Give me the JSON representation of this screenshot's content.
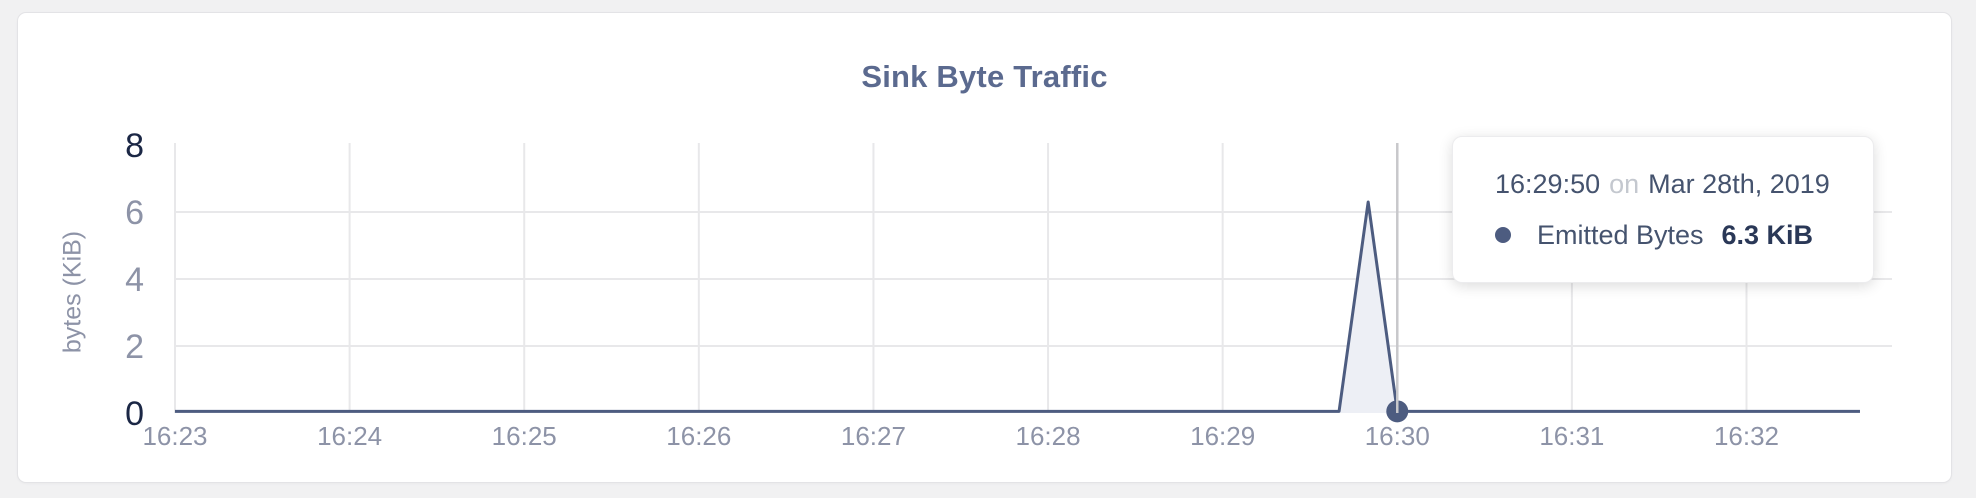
{
  "page": {
    "background": "#f1f1f2"
  },
  "card": {
    "background": "#ffffff",
    "border_color": "#e3e3e6"
  },
  "chart_data": {
    "type": "area",
    "title": "Sink Byte Traffic",
    "xlabel": "",
    "ylabel": "bytes (KiB)",
    "ylim": [
      0,
      8
    ],
    "yticks": [
      0,
      2,
      4,
      6,
      8
    ],
    "ytick_gridlines": [
      2,
      4,
      6
    ],
    "xlim": [
      "16:23:00",
      "16:32:50"
    ],
    "xticks": [
      {
        "time": "16:23:00",
        "label": "16:23"
      },
      {
        "time": "16:24:00",
        "label": "16:24"
      },
      {
        "time": "16:25:00",
        "label": "16:25"
      },
      {
        "time": "16:26:00",
        "label": "16:26"
      },
      {
        "time": "16:27:00",
        "label": "16:27"
      },
      {
        "time": "16:28:00",
        "label": "16:28"
      },
      {
        "time": "16:29:00",
        "label": "16:29"
      },
      {
        "time": "16:30:00",
        "label": "16:30"
      },
      {
        "time": "16:31:00",
        "label": "16:31"
      },
      {
        "time": "16:32:00",
        "label": "16:32"
      }
    ],
    "grid": true,
    "legend_position": "none",
    "series": [
      {
        "name": "Emitted Bytes",
        "color": "#4d5c80",
        "fill": "#edeff5",
        "points": [
          {
            "time": "16:23:00",
            "kib": 0.05
          },
          {
            "time": "16:29:40",
            "kib": 0.05
          },
          {
            "time": "16:29:50",
            "kib": 6.3
          },
          {
            "time": "16:30:00",
            "kib": 0.05
          },
          {
            "time": "16:32:39",
            "kib": 0.05
          }
        ]
      }
    ],
    "hover": {
      "time": "16:30:00",
      "kib": 0.05
    }
  },
  "tooltip": {
    "time": "16:29:50",
    "connector": "on",
    "date": "Mar 28th, 2019",
    "series": "Emitted Bytes",
    "value": "6.3 KiB"
  },
  "colors": {
    "title": "#5b6a8f",
    "axis_tick": "#8d93a7",
    "axis_tick_maxmin": "#1b2745",
    "gridline": "#e8e8ea",
    "crosshair": "#c8c8cb",
    "line": "#4d5c80",
    "area_fill": "#edeff5",
    "tooltip_text": "#45536e",
    "tooltip_muted": "#c4c8cf",
    "tooltip_value": "#2a3857"
  }
}
